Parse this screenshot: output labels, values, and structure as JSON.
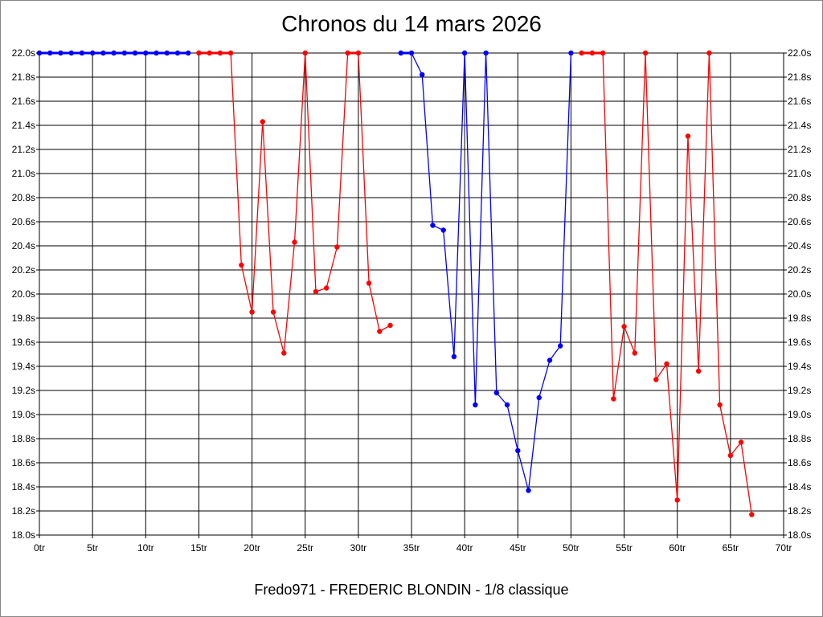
{
  "chart_data": {
    "type": "line",
    "title": "Chronos du 14 mars 2026",
    "footer": "Fredo971 - FREDERIC BLONDIN - 1/8 classique",
    "xlim": [
      0,
      70
    ],
    "ylim": [
      18.0,
      22.0
    ],
    "x_ticks": [
      "0tr",
      "5tr",
      "10tr",
      "15tr",
      "20tr",
      "25tr",
      "30tr",
      "35tr",
      "40tr",
      "45tr",
      "50tr",
      "55tr",
      "60tr",
      "65tr",
      "70tr"
    ],
    "y_ticks": [
      "18.0s",
      "18.2s",
      "18.4s",
      "18.6s",
      "18.8s",
      "19.0s",
      "19.2s",
      "19.4s",
      "19.6s",
      "19.8s",
      "20.0s",
      "20.2s",
      "20.4s",
      "20.6s",
      "20.8s",
      "21.0s",
      "21.2s",
      "21.4s",
      "21.6s",
      "21.8s",
      "22.0s"
    ],
    "grid": true,
    "colors": {
      "red": "#ff0000",
      "blue": "#0000ff"
    },
    "series": [
      {
        "color": "blue",
        "x": [
          0,
          1,
          2,
          3,
          4,
          5,
          6,
          7,
          8,
          9,
          10,
          11,
          12,
          13,
          14
        ],
        "y": [
          22,
          22,
          22,
          22,
          22,
          22,
          22,
          22,
          22,
          22,
          22,
          22,
          22,
          22,
          22
        ]
      },
      {
        "color": "red",
        "x": [
          15,
          16,
          17,
          18,
          19,
          20,
          21,
          22,
          23,
          24,
          25,
          26,
          27,
          28,
          29,
          30,
          31,
          32,
          33
        ],
        "y": [
          22,
          22,
          22,
          22,
          20.24,
          19.85,
          21.43,
          19.85,
          19.51,
          20.43,
          22,
          20.02,
          20.05,
          20.39,
          22,
          22,
          20.09,
          19.69,
          19.74
        ]
      },
      {
        "color": "blue",
        "x": [
          34,
          35,
          36,
          37,
          38,
          39,
          40,
          41,
          42,
          43,
          44,
          45,
          46,
          47,
          48,
          49,
          50
        ],
        "y": [
          22,
          22,
          21.82,
          20.57,
          20.53,
          19.48,
          22,
          19.08,
          22,
          19.18,
          19.08,
          18.7,
          18.37,
          19.14,
          19.45,
          19.57,
          22
        ]
      },
      {
        "color": "red",
        "x": [
          51,
          52,
          53,
          54,
          55,
          56,
          57,
          58,
          59,
          60,
          61,
          62,
          63,
          64,
          65,
          66,
          67
        ],
        "y": [
          22,
          22,
          22,
          19.13,
          19.73,
          19.51,
          22,
          19.29,
          19.42,
          18.29,
          21.31,
          19.36,
          22,
          19.08,
          18.66,
          18.77,
          18.17
        ]
      }
    ]
  }
}
